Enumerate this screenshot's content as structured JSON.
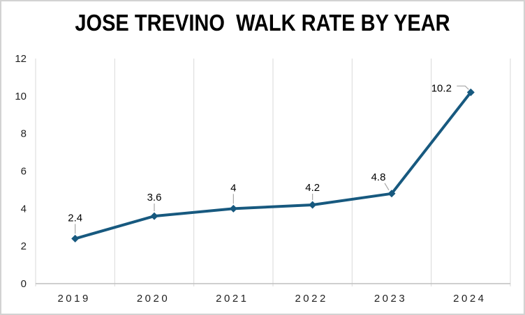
{
  "window": {
    "background_color": "#ffffff",
    "border_color": "#d2d2d2"
  },
  "chart": {
    "title": "JOSE TREVINO  WALK RATE BY YEAR"
  },
  "chart_data": {
    "type": "line",
    "title": "JOSE TREVINO  WALK RATE BY YEAR",
    "categories": [
      "2019",
      "2020",
      "2021",
      "2022",
      "2023",
      "2024"
    ],
    "values": [
      2.4,
      3.6,
      4,
      4.2,
      4.8,
      10.2
    ],
    "data_labels": [
      "2.4",
      "3.6",
      "4",
      "4.2",
      "4.8",
      "10.2"
    ],
    "xlabel": "",
    "ylabel": "",
    "ylim": [
      0,
      12
    ],
    "y_ticks": [
      "0",
      "2",
      "4",
      "6",
      "8",
      "10",
      "12"
    ],
    "grid": "vertical-only",
    "legend": "none",
    "marker": "diamond",
    "label_placement": [
      "above",
      "above",
      "above",
      "above",
      "above-left",
      "left"
    ],
    "colors": {
      "line": "#17597F",
      "marker": "#17597F",
      "gridline": "#d9d9d9",
      "axis_line": "#bfbfbf",
      "leader_line": "#a6a6a6",
      "tick_text": "#1f1f1f",
      "data_label_text": "#000000"
    }
  }
}
